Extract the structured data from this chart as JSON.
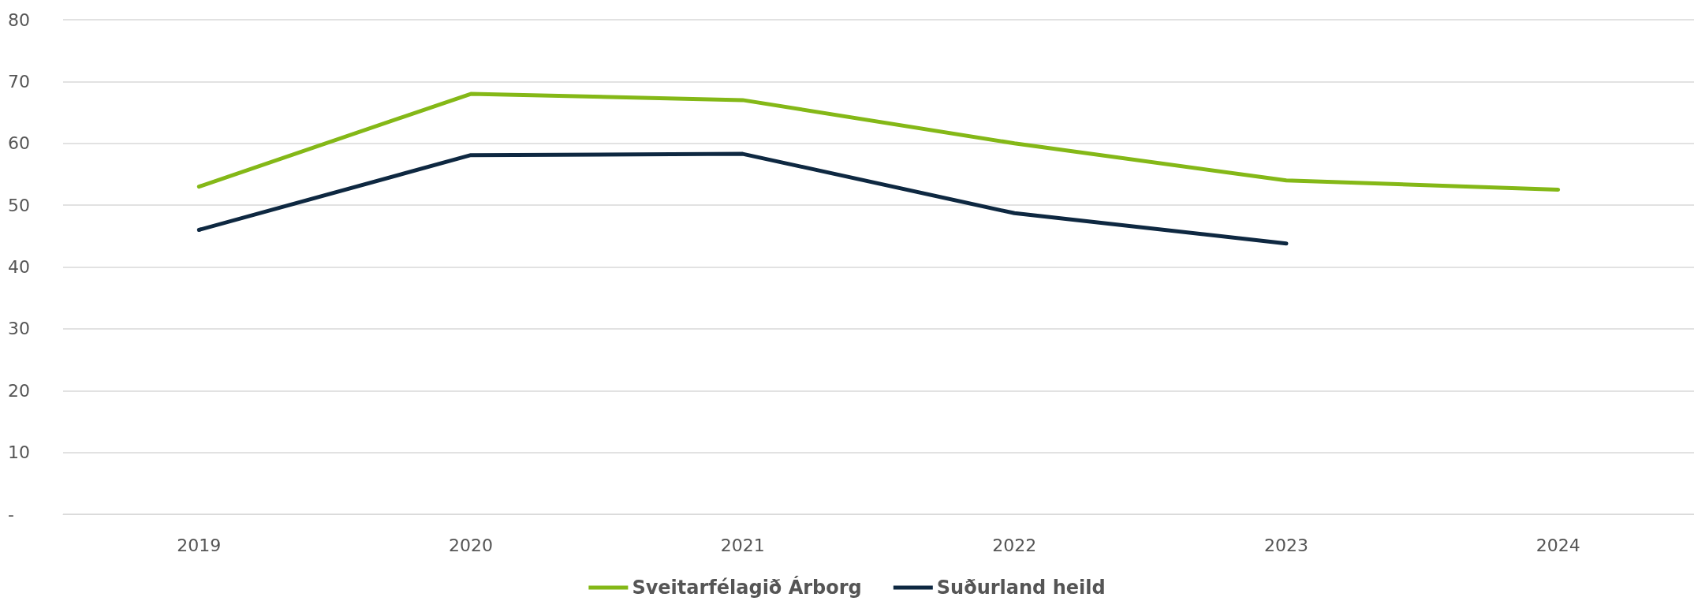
{
  "chart_data": {
    "type": "line",
    "categories": [
      "2019",
      "2020",
      "2021",
      "2022",
      "2023",
      "2024"
    ],
    "series": [
      {
        "name": "Sveitarfélagið Árborg",
        "color": "#84b817",
        "values": [
          53,
          68,
          67,
          60,
          54,
          52.5
        ]
      },
      {
        "name": "Suðurland heild",
        "color": "#0e2841",
        "values": [
          46,
          58.1,
          58.3,
          48.7,
          43.8,
          null
        ]
      }
    ],
    "ylim": [
      0,
      80
    ],
    "yticks": [
      {
        "value": 0,
        "label": "-"
      },
      10,
      20,
      30,
      40,
      50,
      60,
      70,
      80
    ],
    "grid": "y",
    "legend": "bottom",
    "marker": "none",
    "line_style": "solid"
  }
}
